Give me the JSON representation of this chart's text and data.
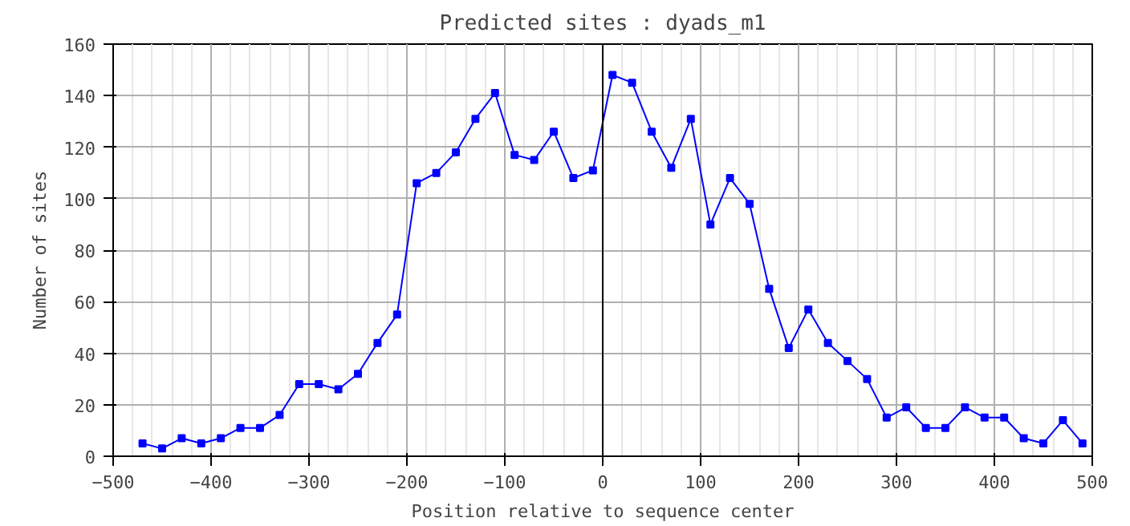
{
  "chart_data": {
    "type": "line",
    "title": "Predicted sites : dyads_m1",
    "xlabel": "Position relative to sequence center",
    "ylabel": "Number of sites",
    "x": [
      -470,
      -450,
      -430,
      -410,
      -390,
      -370,
      -350,
      -330,
      -310,
      -290,
      -270,
      -250,
      -230,
      -210,
      -190,
      -170,
      -150,
      -130,
      -110,
      -90,
      -70,
      -50,
      -30,
      -10,
      10,
      30,
      50,
      70,
      90,
      110,
      130,
      150,
      170,
      190,
      210,
      230,
      250,
      270,
      290,
      310,
      330,
      350,
      370,
      390,
      410,
      430,
      450,
      470,
      490
    ],
    "series": [
      {
        "color": "#0000ff",
        "values": [
          5,
          3,
          7,
          5,
          7,
          11,
          11,
          16,
          28,
          28,
          26,
          32,
          44,
          55,
          106,
          110,
          118,
          131,
          141,
          117,
          115,
          126,
          108,
          111,
          148,
          145,
          126,
          112,
          131,
          90,
          108,
          98,
          65,
          42,
          57,
          44,
          37,
          30,
          15,
          19,
          11,
          11,
          19,
          15,
          15,
          7,
          5,
          14,
          5
        ]
      }
    ],
    "xlim": [
      -500,
      500
    ],
    "xticks": [
      -500,
      -400,
      -300,
      -200,
      -100,
      0,
      100,
      200,
      300,
      400,
      500
    ],
    "ylim": [
      0,
      160
    ],
    "yticks": [
      0,
      20,
      40,
      60,
      80,
      100,
      120,
      140,
      160
    ],
    "grid": true,
    "marker": "square",
    "line_style": "solid",
    "ref_lines": [
      {
        "axis": "x",
        "value": 0,
        "color": "#000000"
      }
    ]
  }
}
